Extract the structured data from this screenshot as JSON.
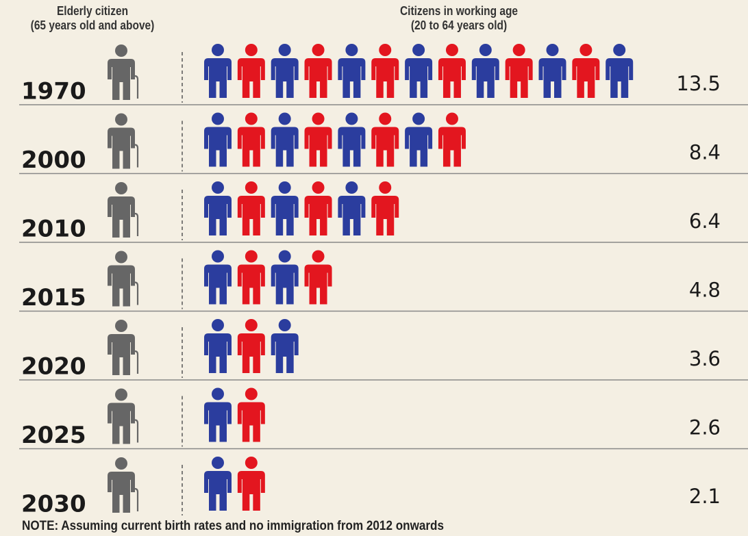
{
  "header": {
    "left_line1": "Elderly citizen",
    "left_line2": "(65 years old and above)",
    "right_line1": "Citizens in working age",
    "right_line2": "(20 to 64 years old)"
  },
  "note": "NOTE: Assuming current birth rates and no immigration from 2012 onwards",
  "colors": {
    "background": "#f4efe3",
    "elderly": "#666666",
    "working_blue": "#2b3d9e",
    "working_red": "#e3161f",
    "divider": "#555555"
  },
  "icons": {
    "elderly": "person-with-cane-icon",
    "working": "person-icon"
  },
  "chart_data": {
    "type": "bar",
    "categories": [
      "1970",
      "2000",
      "2010",
      "2015",
      "2020",
      "2025",
      "2030"
    ],
    "values": [
      13.5,
      8.4,
      6.4,
      4.8,
      3.6,
      2.6,
      2.1
    ]
  }
}
